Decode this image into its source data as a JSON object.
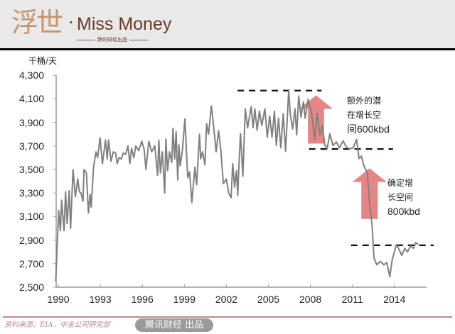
{
  "header": {
    "logo_cn": "浮世",
    "logo_dot": "·",
    "logo_en": "Miss Money",
    "logo_sub": "腾讯财经出品"
  },
  "chart_data": {
    "type": "line",
    "title": "",
    "xlabel": "",
    "ylabel": "千桶/天",
    "xlim": [
      1989.8,
      2016.8
    ],
    "ylim": [
      2500,
      4300
    ],
    "yticks": [
      "4,300",
      "4,100",
      "3,900",
      "3,700",
      "3,500",
      "3,300",
      "3,100",
      "2,900",
      "2,700",
      "2,500"
    ],
    "ytick_values": [
      4300,
      4100,
      3900,
      3700,
      3500,
      3300,
      3100,
      2900,
      2700,
      2500
    ],
    "xticks": [
      "1990",
      "1993",
      "1996",
      "1999",
      "2002",
      "2005",
      "2008",
      "2011",
      "2014"
    ],
    "xtick_values": [
      1990,
      1993,
      1996,
      1999,
      2002,
      2005,
      2008,
      2011,
      2014
    ],
    "grid": false,
    "series_color": "#808080",
    "x": [
      1989.81,
      1990.03,
      1990.15,
      1990.24,
      1990.41,
      1990.52,
      1990.63,
      1990.78,
      1990.88,
      1991.05,
      1991.22,
      1991.39,
      1991.51,
      1991.62,
      1991.76,
      1991.84,
      1992.01,
      1992.15,
      1992.27,
      1992.35,
      1992.52,
      1992.69,
      1992.81,
      1992.98,
      1993.15,
      1993.37,
      1993.49,
      1993.59,
      1993.76,
      1993.93,
      1994.09,
      1994.21,
      1994.33,
      1994.5,
      1994.64,
      1994.81,
      1994.97,
      1995.11,
      1995.23,
      1995.4,
      1995.53,
      1995.74,
      1995.96,
      1996.13,
      1996.26,
      1996.46,
      1996.67,
      1996.89,
      1997.09,
      1997.18,
      1997.29,
      1997.43,
      1997.6,
      1997.68,
      1997.8,
      1997.94,
      1998.1,
      1998.19,
      1998.31,
      1998.41,
      1998.53,
      1998.61,
      1998.7,
      1998.87,
      1999.04,
      1999.24,
      1999.37,
      1999.54,
      1999.75,
      1999.88,
      2000.08,
      2000.17,
      2000.3,
      2000.47,
      2000.59,
      2000.73,
      2000.93,
      2001.07,
      2001.27,
      2001.44,
      2001.61,
      2001.78,
      2002.0,
      2002.17,
      2002.34,
      2002.45,
      2002.59,
      2002.72,
      2002.81,
      2002.89,
      2003.01,
      2003.18,
      2003.35,
      2003.52,
      2003.77,
      2003.91,
      2004.03,
      2004.2,
      2004.36,
      2004.53,
      2004.75,
      2004.92,
      2005.09,
      2005.26,
      2005.43,
      2005.57,
      2005.72,
      2005.89,
      2006.06,
      2006.23,
      2006.45,
      2006.56,
      2006.73,
      2006.9,
      2007.02,
      2007.16,
      2007.33,
      2007.5,
      2007.63,
      2007.83,
      2008.09,
      2008.31,
      2008.48,
      2008.68,
      2008.85,
      2009.02,
      2009.19,
      2009.39,
      2009.61,
      2009.86,
      2010.07,
      2010.34,
      2010.54,
      2010.79,
      2011.05,
      2011.3,
      2011.47,
      2011.64,
      2011.81,
      2012.06,
      2012.23,
      2012.4,
      2012.54,
      2012.74,
      2013.0,
      2013.25,
      2013.45,
      2013.67,
      2013.84,
      2014.13,
      2014.3,
      2014.52,
      2014.74,
      2014.94,
      2015.14,
      2015.36,
      2015.53,
      2015.7
    ],
    "values": [
      2549,
      3151,
      2980,
      3240,
      2980,
      3310,
      3040,
      3320,
      3000,
      3500,
      3270,
      3420,
      3310,
      3300,
      3230,
      3500,
      3470,
      3130,
      3290,
      3180,
      3520,
      3650,
      3600,
      3770,
      3550,
      3750,
      3590,
      3750,
      3570,
      3650,
      3640,
      3550,
      3600,
      3590,
      3640,
      3630,
      3700,
      3550,
      3680,
      3600,
      3700,
      3660,
      3740,
      3670,
      3500,
      3740,
      3650,
      3700,
      3450,
      3750,
      3470,
      3650,
      3300,
      3760,
      3490,
      3650,
      3560,
      3850,
      3590,
      3820,
      3410,
      3710,
      3530,
      3670,
      3930,
      3430,
      3480,
      3220,
      3520,
      3370,
      3800,
      3590,
      3650,
      3540,
      3890,
      3800,
      4040,
      3890,
      3650,
      3830,
      3660,
      3380,
      3420,
      3300,
      3260,
      3550,
      3350,
      3490,
      3280,
      3510,
      3804,
      3443,
      4015,
      3854,
      4035,
      3854,
      4015,
      3834,
      3995,
      3874,
      4015,
      3774,
      3955,
      3774,
      3995,
      3704,
      3935,
      3684,
      3975,
      3654,
      4176,
      3975,
      3844,
      4015,
      3794,
      4125,
      3945,
      4075,
      3935,
      4095,
      3975,
      3754,
      3975,
      3794,
      3874,
      3714,
      3674,
      3804,
      3704,
      3734,
      3684,
      3744,
      3694,
      3674,
      3684,
      3754,
      3593,
      3613,
      3533,
      3473,
      3212,
      3031,
      2750,
      2690,
      2720,
      2690,
      2710,
      2589,
      2730,
      2860,
      2830,
      2770,
      2830,
      2800,
      2850,
      2830,
      2880,
      2860
    ],
    "reference_lines": [
      {
        "value": 4170,
        "from": 2002.8,
        "to": 2008.8
      },
      {
        "value": 3674,
        "from": 2007.9,
        "to": 2013.9
      },
      {
        "value": 2856,
        "from": 2010.9,
        "to": 2016.8
      }
    ],
    "arrows": [
      {
        "from_value": 3720,
        "to_value": 4130,
        "x_from": 2007.2,
        "x_to": 2009.6,
        "color": "#d9534f"
      },
      {
        "from_value": 3080,
        "to_value": 3510,
        "x_from": 2011.0,
        "x_to": 2013.45,
        "color": "#d9534f"
      }
    ],
    "annotations": [
      {
        "lines": [
          "额外的潜",
          "在增长空",
          "间600kbd"
        ]
      },
      {
        "lines": [
          "确定增",
          "长空间",
          "800kbd"
        ]
      }
    ]
  },
  "footer": {
    "source": "资料来源：EIA，中金公司研究部",
    "watermark": "腾讯财经 出品"
  }
}
